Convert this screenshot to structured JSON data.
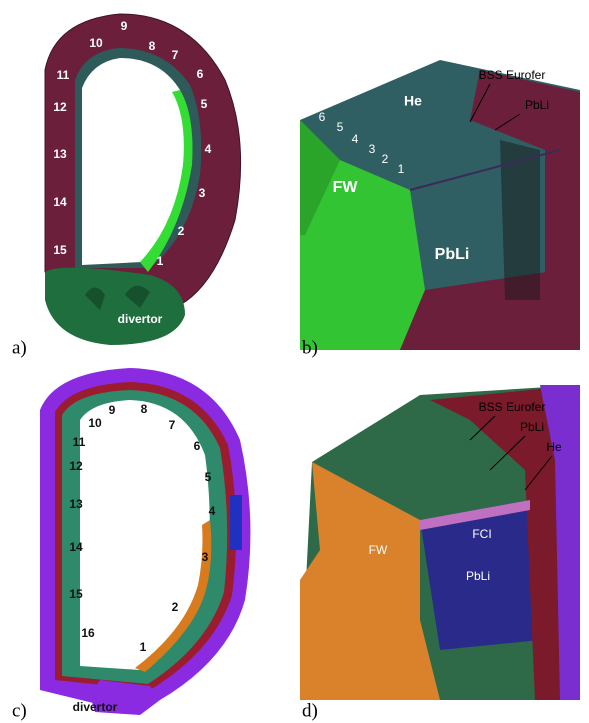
{
  "panels": [
    {
      "label": "a)",
      "module_numbers": [
        "1",
        "2",
        "3",
        "4",
        "5",
        "6",
        "7",
        "8",
        "9",
        "10",
        "11",
        "12",
        "13",
        "14",
        "15"
      ],
      "annotations": [
        "divertor"
      ]
    },
    {
      "label": "b)",
      "module_numbers": [
        "1",
        "2",
        "3",
        "4",
        "5",
        "6"
      ],
      "annotations": [
        "He",
        "BSS Eurofer",
        "PbLi",
        "FW",
        "PbLi"
      ]
    },
    {
      "label": "c)",
      "module_numbers": [
        "1",
        "2",
        "3",
        "4",
        "5",
        "6",
        "7",
        "8",
        "9",
        "10",
        "11",
        "12",
        "13",
        "14",
        "15",
        "16"
      ],
      "annotations": [
        "divertor"
      ]
    },
    {
      "label": "d)",
      "annotations": [
        "BSS Eurofer",
        "PbLi",
        "He",
        "FW",
        "FCI",
        "PbLi"
      ]
    }
  ]
}
